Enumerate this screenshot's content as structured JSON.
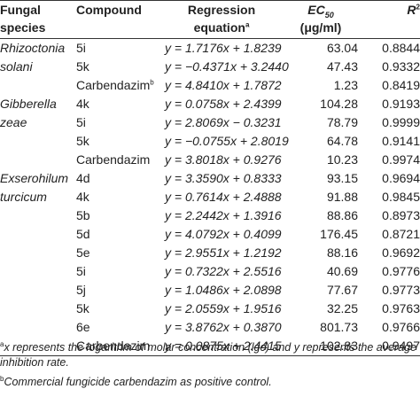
{
  "headers": {
    "fungal_line1": "Fungal",
    "fungal_line2": "species",
    "compound": "Compound",
    "regression_line1": "Regression",
    "regression_line2": "equation",
    "regression_sup": "a",
    "ec50_base": "EC",
    "ec50_sub": "50",
    "ec50_unit": "(μg/ml)",
    "r2_base": "R",
    "r2_sup": "2"
  },
  "rows": [
    {
      "species": "Rhizoctonia",
      "compound": "5i",
      "compound_sup": "",
      "equation": "y = 1.7176x + 1.8239",
      "ec50": "63.04",
      "r2": "0.8844"
    },
    {
      "species": "solani",
      "compound": "5k",
      "compound_sup": "",
      "equation": "y = −0.4371x + 3.2440",
      "ec50": "47.43",
      "r2": "0.9332"
    },
    {
      "species": "",
      "compound": "Carbendazim",
      "compound_sup": "b",
      "equation": "y = 4.8410x + 1.7872",
      "ec50": "1.23",
      "r2": "0.8419"
    },
    {
      "species": "Gibberella",
      "compound": "4k",
      "compound_sup": "",
      "equation": "y = 0.0758x + 2.4399",
      "ec50": "104.28",
      "r2": "0.9193"
    },
    {
      "species": "zeae",
      "compound": "5i",
      "compound_sup": "",
      "equation": "y = 2.8069x − 0.3231",
      "ec50": "78.79",
      "r2": "0.9999"
    },
    {
      "species": "",
      "compound": "5k",
      "compound_sup": "",
      "equation": "y = −0.0755x + 2.8019",
      "ec50": "64.78",
      "r2": "0.9141"
    },
    {
      "species": "",
      "compound": "Carbendazim",
      "compound_sup": "",
      "equation": "y = 3.8018x + 0.9276",
      "ec50": "10.23",
      "r2": "0.9974"
    },
    {
      "species": "Exserohilum",
      "compound": "4d",
      "compound_sup": "",
      "equation": "y = 3.3590x + 0.8333",
      "ec50": "93.15",
      "r2": "0.9694"
    },
    {
      "species": "turcicum",
      "compound": "4k",
      "compound_sup": "",
      "equation": "y = 0.7614x + 2.4888",
      "ec50": "91.88",
      "r2": "0.9845"
    },
    {
      "species": "",
      "compound": "5b",
      "compound_sup": "",
      "equation": "y = 2.2442x + 1.3916",
      "ec50": "88.86",
      "r2": "0.8973"
    },
    {
      "species": "",
      "compound": "5d",
      "compound_sup": "",
      "equation": "y = 4.0792x + 0.4099",
      "ec50": "176.45",
      "r2": "0.8721"
    },
    {
      "species": "",
      "compound": "5e",
      "compound_sup": "",
      "equation": "y = 2.9551x + 1.2192",
      "ec50": "88.16",
      "r2": "0.9692"
    },
    {
      "species": "",
      "compound": "5i",
      "compound_sup": "",
      "equation": "y = 0.7322x + 2.5516",
      "ec50": "40.69",
      "r2": "0.9776"
    },
    {
      "species": "",
      "compound": "5j",
      "compound_sup": "",
      "equation": "y = 1.0486x + 2.0898",
      "ec50": "77.67",
      "r2": "0.9773"
    },
    {
      "species": "",
      "compound": "5k",
      "compound_sup": "",
      "equation": "y = 2.0559x + 1.9516",
      "ec50": "32.25",
      "r2": "0.9763"
    },
    {
      "species": "",
      "compound": "6e",
      "compound_sup": "",
      "equation": "y = 3.8762x + 0.3870",
      "ec50": "801.73",
      "r2": "0.9766"
    },
    {
      "species": "",
      "compound": "Carbendazim",
      "compound_sup": "",
      "equation": "y = 0.0875x + 2.4415",
      "ec50": "102.83",
      "r2": "0.9497"
    }
  ],
  "footnotes": {
    "a_sup": "a",
    "a_text": "x represents the logarithm of molar concentration (lgc) and y represents the average inhibition rate.",
    "b_sup": "b",
    "b_text": "Commercial fungicide carbendazim as positive control."
  }
}
